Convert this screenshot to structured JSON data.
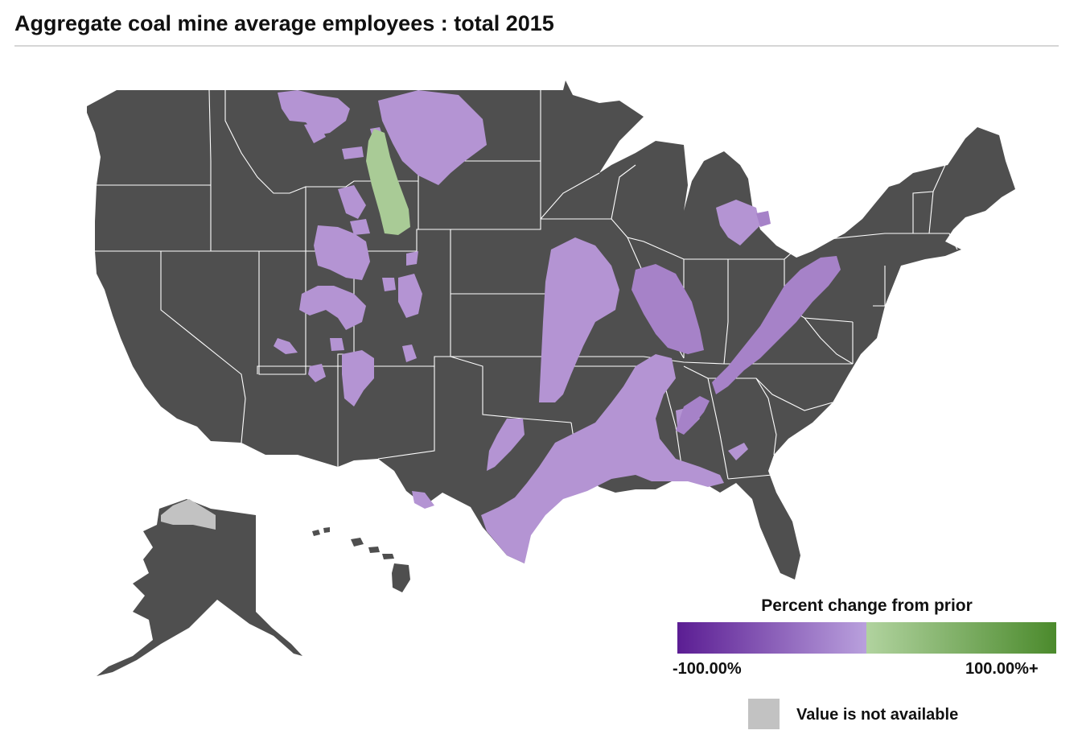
{
  "title": "Aggregate coal mine average employees : total 2015",
  "legend": {
    "title": "Percent change from prior",
    "min_label": "-100.00%",
    "max_label": "100.00%+",
    "na_label": "Value is not available"
  },
  "colors": {
    "state_fill": "#4f4f4f",
    "border": "#ffffff",
    "coal_decrease": "#b494d3",
    "coal_decrease_strong": "#a682c8",
    "coal_increase": "#a9cb96",
    "not_available": "#c2c2c2",
    "gradient_neg_dark": "#5b1d93",
    "gradient_neg_light": "#b9a0dd",
    "gradient_pos_light": "#b1d39f",
    "gradient_pos_dark": "#4b8a2c"
  }
}
